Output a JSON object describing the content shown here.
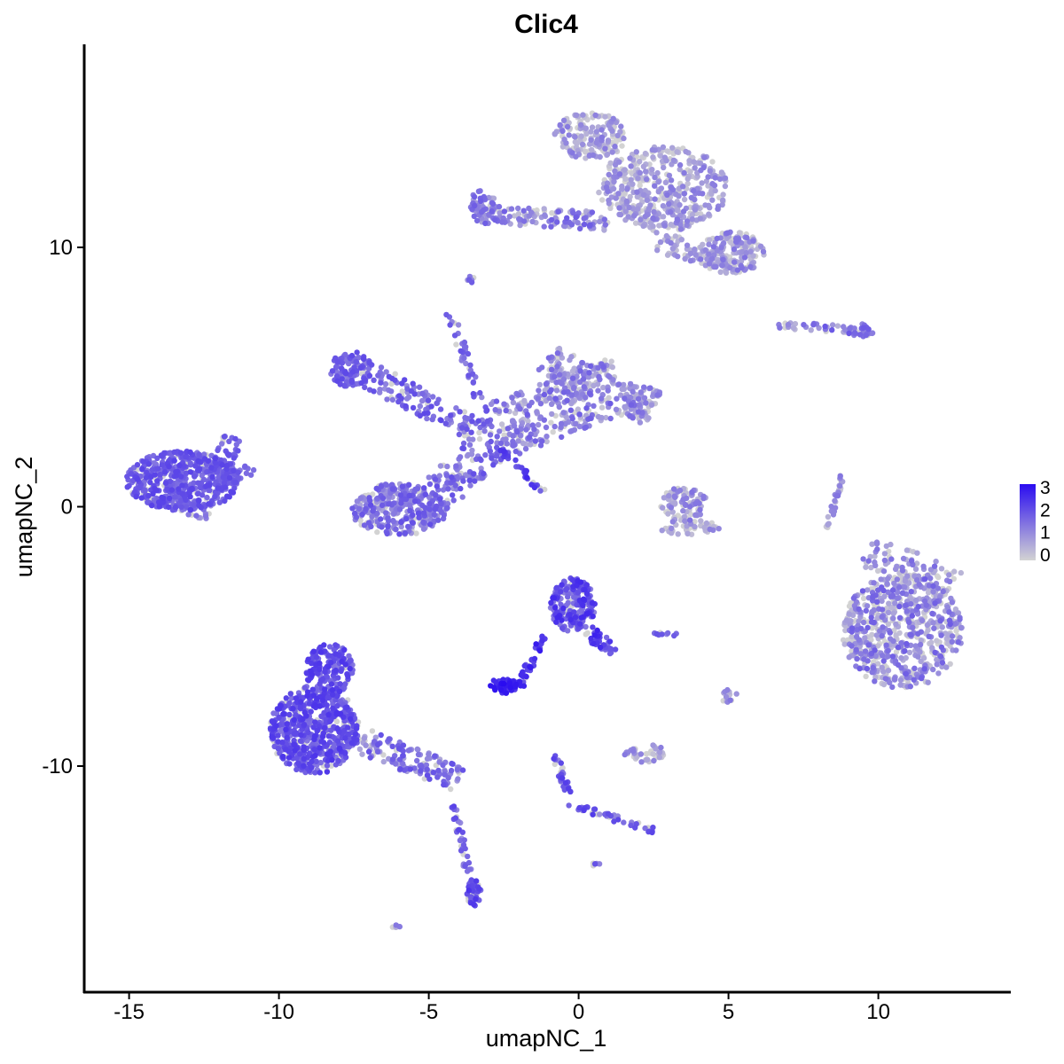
{
  "chart_data": {
    "type": "scatter",
    "title": "Clic4",
    "xlabel": "umapNC_1",
    "ylabel": "umapNC_2",
    "xlim": [
      -16.5,
      14.5
    ],
    "ylim": [
      -17.8,
      17.8
    ],
    "x_ticks": [
      -15,
      -10,
      -5,
      0,
      5,
      10
    ],
    "x_tick_labels": [
      "-15",
      "-10",
      "-5",
      "0",
      "5",
      "10"
    ],
    "y_ticks": [
      -10,
      0,
      10
    ],
    "y_tick_labels": [
      "-10",
      "0",
      "10"
    ],
    "grid": false,
    "legend": {
      "position": "right",
      "type": "colorbar",
      "range": [
        0,
        3
      ],
      "ticks": [
        0,
        1,
        2,
        3
      ],
      "tick_labels": [
        "0",
        "1",
        "2",
        "3"
      ],
      "low_color": "#d3d3d3",
      "high_color": "#2a0cf0"
    },
    "clusters": [
      {
        "shape": "ellipse",
        "cx": -13.2,
        "cy": 1.0,
        "rx": 1.9,
        "ry": 1.15,
        "n": 520,
        "expr": [
          1.4,
          2.2
        ]
      },
      {
        "shape": "segment",
        "x1": -12.0,
        "y1": 1.2,
        "x2": -11.5,
        "y2": 2.7,
        "w": 0.35,
        "n": 40,
        "expr": [
          1.3,
          2.0
        ]
      },
      {
        "shape": "segment",
        "x1": -12.0,
        "y1": 1.1,
        "x2": -10.8,
        "y2": 1.4,
        "w": 0.3,
        "n": 30,
        "expr": [
          1.3,
          2.0
        ]
      },
      {
        "shape": "segment",
        "x1": -13.0,
        "y1": 0.0,
        "x2": -12.3,
        "y2": -0.2,
        "w": 0.35,
        "n": 25,
        "expr": [
          0.8,
          1.8
        ]
      },
      {
        "shape": "ellipse",
        "cx": -6.0,
        "cy": -0.1,
        "rx": 1.6,
        "ry": 1.0,
        "n": 340,
        "expr": [
          0.7,
          2.0
        ]
      },
      {
        "shape": "ellipse",
        "cx": -7.6,
        "cy": 5.3,
        "rx": 0.7,
        "ry": 0.7,
        "n": 110,
        "expr": [
          1.2,
          2.1
        ]
      },
      {
        "shape": "segment",
        "x1": -7.2,
        "y1": 5.2,
        "x2": -3.5,
        "y2": 3.0,
        "w": 0.5,
        "n": 120,
        "expr": [
          1.0,
          2.1
        ]
      },
      {
        "shape": "segment",
        "x1": -4.8,
        "y1": 0.3,
        "x2": -2.5,
        "y2": 2.9,
        "w": 0.7,
        "n": 140,
        "expr": [
          0.8,
          2.0
        ]
      },
      {
        "shape": "segment",
        "x1": -2.5,
        "y1": 3.0,
        "x2": 1.5,
        "y2": 4.8,
        "w": 1.1,
        "n": 320,
        "expr": [
          0.1,
          1.8
        ]
      },
      {
        "shape": "segment",
        "x1": -1.0,
        "y1": 5.8,
        "x2": 0.5,
        "y2": 4.5,
        "w": 0.6,
        "n": 90,
        "expr": [
          0.1,
          1.6
        ]
      },
      {
        "shape": "segment",
        "x1": 1.5,
        "y1": 4.2,
        "x2": 2.5,
        "y2": 3.8,
        "w": 0.7,
        "n": 90,
        "expr": [
          0.1,
          1.6
        ]
      },
      {
        "shape": "segment",
        "x1": -4.3,
        "y1": 7.5,
        "x2": -3.0,
        "y2": 3.0,
        "w": 0.15,
        "n": 45,
        "expr": [
          1.0,
          2.0
        ]
      },
      {
        "shape": "segment",
        "x1": -2.6,
        "y1": 2.2,
        "x2": -1.2,
        "y2": 0.6,
        "w": 0.12,
        "n": 30,
        "expr": [
          1.6,
          2.6
        ]
      },
      {
        "shape": "ellipse",
        "cx": 0.4,
        "cy": 14.3,
        "rx": 1.2,
        "ry": 0.9,
        "n": 170,
        "expr": [
          0.0,
          1.4
        ]
      },
      {
        "shape": "ellipse",
        "cx": 2.8,
        "cy": 12.3,
        "rx": 2.2,
        "ry": 1.6,
        "n": 380,
        "expr": [
          0.0,
          1.4
        ]
      },
      {
        "shape": "ellipse",
        "cx": 5.1,
        "cy": 9.8,
        "rx": 1.1,
        "ry": 0.8,
        "n": 170,
        "expr": [
          0.0,
          1.5
        ]
      },
      {
        "shape": "segment",
        "x1": 0.8,
        "y1": 12.5,
        "x2": 3.8,
        "y2": 10.8,
        "w": 0.8,
        "n": 100,
        "expr": [
          0.0,
          1.4
        ]
      },
      {
        "shape": "segment",
        "x1": -3.5,
        "y1": 11.3,
        "x2": 1.0,
        "y2": 11.0,
        "w": 0.35,
        "n": 140,
        "expr": [
          0.3,
          1.8
        ]
      },
      {
        "shape": "segment",
        "x1": 2.6,
        "y1": 10.1,
        "x2": 5.3,
        "y2": 9.3,
        "w": 0.28,
        "n": 60,
        "expr": [
          0.0,
          1.3
        ]
      },
      {
        "shape": "ellipse",
        "cx": -3.2,
        "cy": 11.7,
        "rx": 0.45,
        "ry": 0.5,
        "n": 45,
        "expr": [
          0.6,
          1.8
        ]
      },
      {
        "shape": "segment",
        "x1": 6.6,
        "y1": 7.0,
        "x2": 9.9,
        "y2": 6.8,
        "w": 0.15,
        "n": 40,
        "expr": [
          0.3,
          1.9
        ]
      },
      {
        "shape": "ellipse",
        "cx": 9.4,
        "cy": 6.8,
        "rx": 0.45,
        "ry": 0.25,
        "n": 30,
        "expr": [
          0.8,
          2.0
        ]
      },
      {
        "shape": "ellipse",
        "cx": 3.5,
        "cy": 0.1,
        "rx": 0.8,
        "ry": 0.65,
        "n": 90,
        "expr": [
          0.0,
          1.5
        ]
      },
      {
        "shape": "ellipse",
        "cx": 3.7,
        "cy": -0.8,
        "rx": 1.0,
        "ry": 0.3,
        "n": 40,
        "expr": [
          0.0,
          1.3
        ]
      },
      {
        "shape": "segment",
        "x1": 8.3,
        "y1": -0.8,
        "x2": 8.8,
        "y2": 1.2,
        "w": 0.08,
        "n": 30,
        "expr": [
          0.0,
          1.5
        ]
      },
      {
        "shape": "ellipse",
        "cx": 10.8,
        "cy": -4.8,
        "rx": 2.0,
        "ry": 2.2,
        "n": 650,
        "expr": [
          0.0,
          1.8
        ]
      },
      {
        "shape": "segment",
        "x1": 9.6,
        "y1": -1.7,
        "x2": 12.6,
        "y2": -3.0,
        "w": 0.6,
        "n": 100,
        "expr": [
          0.0,
          1.6
        ]
      },
      {
        "shape": "ellipse",
        "cx": -0.2,
        "cy": -3.8,
        "rx": 0.75,
        "ry": 1.05,
        "n": 200,
        "expr": [
          1.2,
          2.6
        ]
      },
      {
        "shape": "segment",
        "x1": 0.3,
        "y1": -4.8,
        "x2": 1.2,
        "y2": -5.6,
        "w": 0.25,
        "n": 40,
        "expr": [
          1.5,
          2.7
        ]
      },
      {
        "shape": "segment",
        "x1": -2.0,
        "y1": -7.0,
        "x2": -1.2,
        "y2": -5.0,
        "w": 0.15,
        "n": 40,
        "expr": [
          1.8,
          2.8
        ]
      },
      {
        "shape": "ellipse",
        "cx": -2.5,
        "cy": -6.9,
        "rx": 0.45,
        "ry": 0.3,
        "n": 60,
        "expr": [
          2.0,
          3.0
        ]
      },
      {
        "shape": "ellipse",
        "cx": -8.8,
        "cy": -8.6,
        "rx": 1.5,
        "ry": 1.7,
        "n": 620,
        "expr": [
          1.3,
          2.4
        ]
      },
      {
        "shape": "ellipse",
        "cx": -8.3,
        "cy": -6.3,
        "rx": 0.8,
        "ry": 1.0,
        "n": 160,
        "expr": [
          1.3,
          2.4
        ]
      },
      {
        "shape": "segment",
        "x1": -7.3,
        "y1": -9.0,
        "x2": -4.0,
        "y2": -10.5,
        "w": 0.5,
        "n": 140,
        "expr": [
          0.6,
          2.0
        ]
      },
      {
        "shape": "segment",
        "x1": -4.2,
        "y1": -11.5,
        "x2": -3.6,
        "y2": -14.5,
        "w": 0.12,
        "n": 35,
        "expr": [
          1.0,
          2.2
        ]
      },
      {
        "shape": "ellipse",
        "cx": -3.5,
        "cy": -14.9,
        "rx": 0.25,
        "ry": 0.5,
        "n": 40,
        "expr": [
          1.5,
          2.4
        ]
      },
      {
        "shape": "segment",
        "x1": -0.8,
        "y1": -9.5,
        "x2": -0.2,
        "y2": -11.6,
        "w": 0.12,
        "n": 30,
        "expr": [
          1.0,
          2.3
        ]
      },
      {
        "shape": "segment",
        "x1": -0.2,
        "y1": -11.5,
        "x2": 2.5,
        "y2": -12.5,
        "w": 0.12,
        "n": 40,
        "expr": [
          1.0,
          2.3
        ]
      },
      {
        "shape": "ellipse",
        "cx": 2.2,
        "cy": -9.5,
        "rx": 0.7,
        "ry": 0.35,
        "n": 40,
        "expr": [
          0.0,
          1.4
        ]
      },
      {
        "shape": "ellipse",
        "cx": 2.9,
        "cy": -4.9,
        "rx": 0.4,
        "ry": 0.12,
        "n": 10,
        "expr": [
          1.0,
          2.0
        ]
      },
      {
        "shape": "ellipse",
        "cx": 5.0,
        "cy": -7.3,
        "rx": 0.3,
        "ry": 0.3,
        "n": 12,
        "expr": [
          0.3,
          1.5
        ]
      },
      {
        "shape": "ellipse",
        "cx": -3.6,
        "cy": 8.8,
        "rx": 0.15,
        "ry": 0.2,
        "n": 6,
        "expr": [
          0.8,
          1.8
        ]
      },
      {
        "shape": "ellipse",
        "cx": 0.6,
        "cy": -13.8,
        "rx": 0.15,
        "ry": 0.1,
        "n": 5,
        "expr": [
          1.0,
          2.0
        ]
      },
      {
        "shape": "ellipse",
        "cx": -6.1,
        "cy": -16.2,
        "rx": 0.2,
        "ry": 0.1,
        "n": 4,
        "expr": [
          0.5,
          1.5
        ]
      }
    ]
  }
}
